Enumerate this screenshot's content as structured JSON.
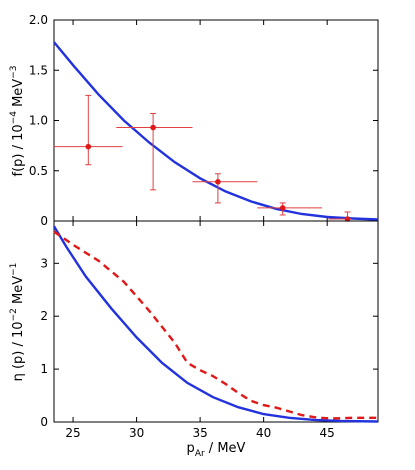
{
  "chart_data": [
    {
      "type": "scatter",
      "title": "",
      "xlabel": "",
      "ylabel": {
        "main": "f(p) / 10",
        "sup": "−4",
        "unit": " MeV",
        "unit_sup": "−3"
      },
      "xlim": [
        23.5,
        49
      ],
      "ylim": [
        0,
        2.0
      ],
      "yticks": [
        "0",
        "0.5",
        "1.0",
        "1.5",
        "2.0"
      ],
      "grid": false,
      "series": [
        {
          "kind": "points_with_errors",
          "color": "#e01818",
          "points": [
            {
              "x": 26.2,
              "y": 0.74,
              "xerr": [
                2.7,
                2.7
              ],
              "yerr": [
                0.18,
                0.51
              ]
            },
            {
              "x": 31.3,
              "y": 0.93,
              "xerr": [
                2.9,
                3.1
              ],
              "yerr": [
                0.62,
                0.14
              ]
            },
            {
              "x": 36.4,
              "y": 0.39,
              "xerr": [
                2.0,
                3.1
              ],
              "yerr": [
                0.21,
                0.08
              ]
            },
            {
              "x": 41.5,
              "y": 0.13,
              "xerr": [
                2.0,
                3.1
              ],
              "yerr": [
                0.07,
                0.05
              ]
            },
            {
              "x": 46.6,
              "y": 0.02,
              "xerr": [
                1.5,
                0.3
              ],
              "yerr": [
                0.02,
                0.07
              ]
            }
          ]
        },
        {
          "kind": "line",
          "color": "#2233dd",
          "x": [
            23.5,
            25,
            27,
            29,
            31,
            33,
            35,
            37,
            39,
            41,
            43,
            45,
            47,
            49
          ],
          "y": [
            1.78,
            1.55,
            1.26,
            1.0,
            0.78,
            0.585,
            0.425,
            0.295,
            0.195,
            0.12,
            0.07,
            0.04,
            0.025,
            0.015
          ]
        }
      ]
    },
    {
      "type": "line",
      "title": "",
      "xlabel": {
        "main": "p",
        "sub": "Ar",
        "unit": " / MeV"
      },
      "ylabel": {
        "main": "η (p) / 10",
        "sup": "−2",
        "unit": " MeV",
        "unit_sup": "−1"
      },
      "xlim": [
        23.5,
        49
      ],
      "ylim": [
        0,
        3.8
      ],
      "xticks": [
        "25",
        "30",
        "35",
        "40",
        "45"
      ],
      "yticks": [
        "0",
        "1",
        "2",
        "3"
      ],
      "grid": false,
      "series": [
        {
          "kind": "line",
          "color": "#2233dd",
          "style": "solid",
          "x": [
            23.5,
            24.5,
            26,
            28,
            30,
            32,
            34,
            36,
            38,
            40,
            42,
            44,
            46,
            49
          ],
          "y": [
            3.7,
            3.3,
            2.75,
            2.15,
            1.6,
            1.12,
            0.74,
            0.47,
            0.28,
            0.15,
            0.08,
            0.04,
            0.02,
            0.01
          ]
        },
        {
          "kind": "line",
          "color": "#e01818",
          "style": "dashed",
          "x": [
            23.5,
            25,
            27,
            29,
            31,
            33,
            34,
            35,
            36,
            37,
            38,
            39,
            40,
            41,
            42,
            43,
            44,
            45,
            46,
            47,
            48,
            49
          ],
          "y": [
            3.6,
            3.35,
            3.05,
            2.65,
            2.1,
            1.5,
            1.12,
            0.98,
            0.87,
            0.72,
            0.55,
            0.4,
            0.32,
            0.27,
            0.2,
            0.13,
            0.09,
            0.07,
            0.07,
            0.08,
            0.08,
            0.08
          ]
        }
      ]
    }
  ]
}
